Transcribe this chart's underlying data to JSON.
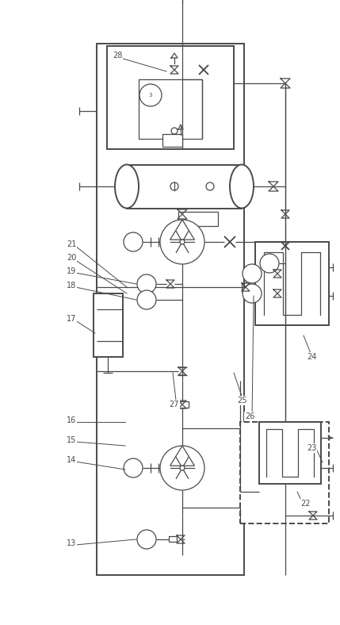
{
  "bg_color": "#ffffff",
  "line_color": "#4a4a4a",
  "lw": 0.9,
  "lw2": 1.4,
  "fig_width": 4.29,
  "fig_height": 7.88
}
